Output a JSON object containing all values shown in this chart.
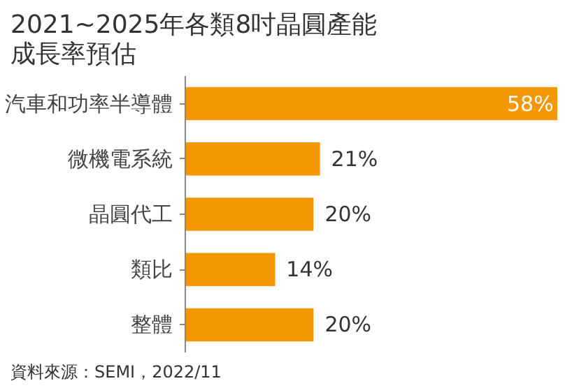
{
  "chart_data": {
    "type": "bar",
    "orientation": "horizontal",
    "title": "2021~2025年各類8吋晶圓產能成長率預估",
    "categories": [
      "汽車和功率半導體",
      "微機電系統",
      "晶圓代工",
      "類比",
      "整體"
    ],
    "values": [
      58,
      21,
      20,
      14,
      20
    ],
    "value_labels": [
      "58%",
      "21%",
      "20%",
      "14%",
      "20%"
    ],
    "color": "#f39800",
    "annotations": [
      "資料來源：SEMI，2022/11"
    ]
  }
}
